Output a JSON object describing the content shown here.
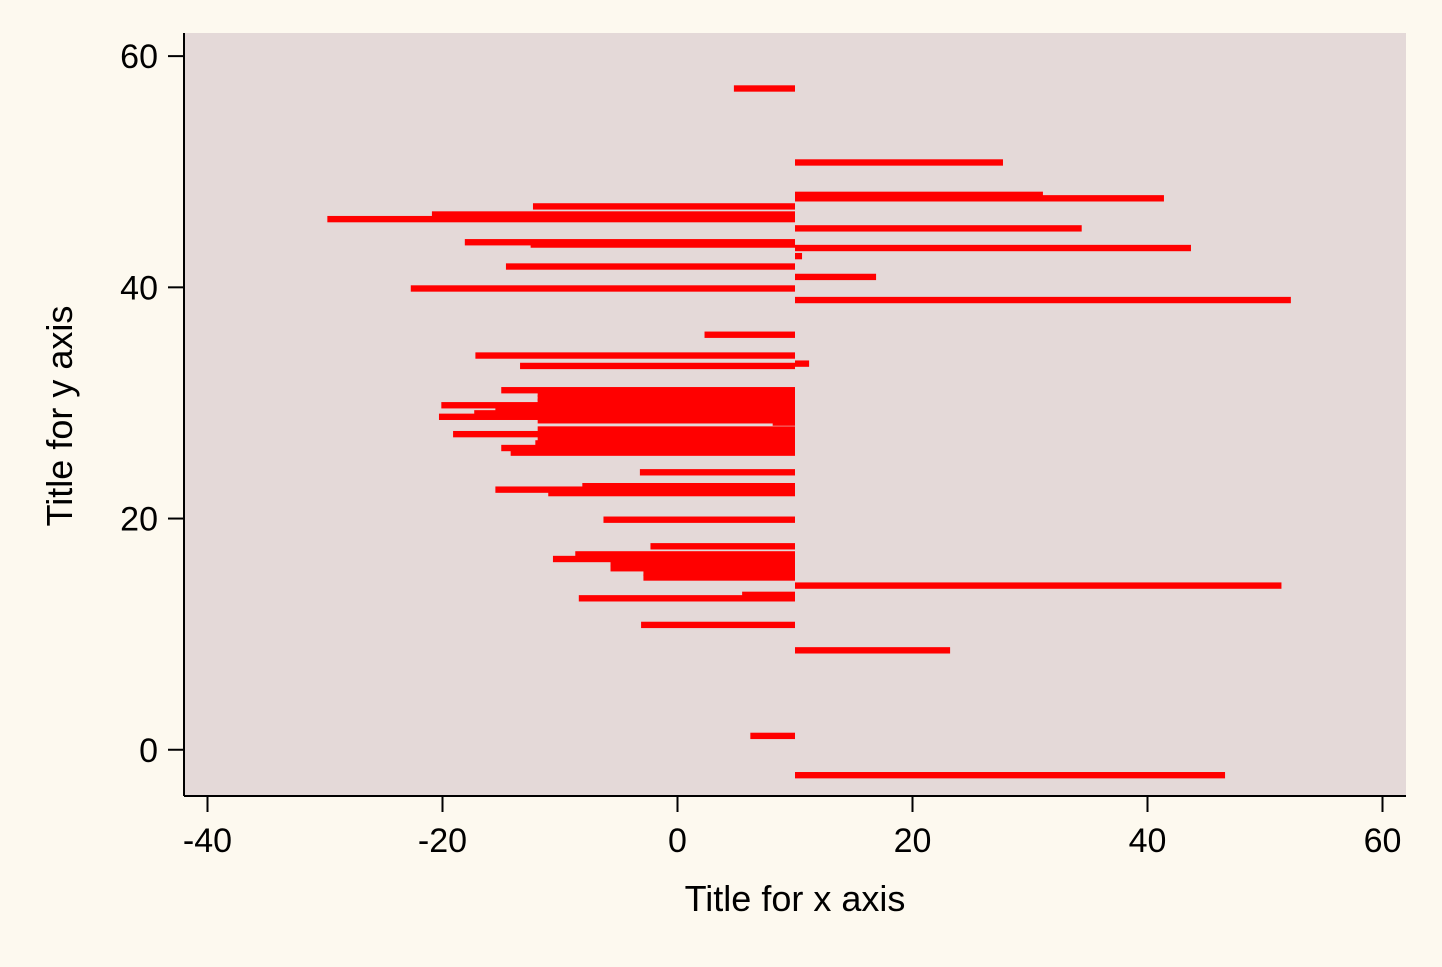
{
  "chart_data": {
    "type": "bar",
    "orientation": "horizontal",
    "xlabel": "Title for x axis",
    "ylabel": "Title for y axis",
    "xlim": [
      -42,
      62
    ],
    "ylim": [
      -4,
      62
    ],
    "x_ticks": [
      -40,
      -20,
      0,
      20,
      40,
      60
    ],
    "y_ticks": [
      0,
      20,
      40,
      60
    ],
    "base": 10,
    "bar_height": 0.55,
    "grid": false,
    "legend": "none",
    "colors": {
      "bar": "#ff0000",
      "plot_background": "#e4d9d8",
      "page_background": "#fdf9ef",
      "axis": "#000000"
    },
    "series": [
      {
        "points": [
          {
            "y": 57.2,
            "x": 4.8
          },
          {
            "y": 50.8,
            "x": 27.7
          },
          {
            "y": 48.0,
            "x": 31.1
          },
          {
            "y": 47.7,
            "x": 41.4
          },
          {
            "y": 47.0,
            "x": -12.3
          },
          {
            "y": 46.3,
            "x": -20.9
          },
          {
            "y": 45.9,
            "x": -29.8
          },
          {
            "y": 45.1,
            "x": 34.4
          },
          {
            "y": 43.9,
            "x": -18.1
          },
          {
            "y": 43.7,
            "x": -12.5
          },
          {
            "y": 43.4,
            "x": 43.7
          },
          {
            "y": 42.7,
            "x": 10.6
          },
          {
            "y": 41.8,
            "x": -14.6
          },
          {
            "y": 40.9,
            "x": 16.9
          },
          {
            "y": 39.9,
            "x": -22.7
          },
          {
            "y": 38.9,
            "x": 52.2
          },
          {
            "y": 35.9,
            "x": 2.3
          },
          {
            "y": 34.1,
            "x": -17.2
          },
          {
            "y": 33.4,
            "x": 11.2
          },
          {
            "y": 33.2,
            "x": -13.4
          },
          {
            "y": 31.1,
            "x": -15.0
          },
          {
            "y": 30.8,
            "x": -11.9
          },
          {
            "y": 30.4,
            "x": -11.9
          },
          {
            "y": 30.1,
            "x": -11.9
          },
          {
            "y": 29.8,
            "x": -20.1
          },
          {
            "y": 29.5,
            "x": -15.5
          },
          {
            "y": 29.1,
            "x": -17.3
          },
          {
            "y": 28.8,
            "x": -20.3
          },
          {
            "y": 28.5,
            "x": -11.9
          },
          {
            "y": 28.3,
            "x": 8.1
          },
          {
            "y": 27.7,
            "x": -11.9
          },
          {
            "y": 27.3,
            "x": -19.1
          },
          {
            "y": 26.9,
            "x": -11.9
          },
          {
            "y": 26.5,
            "x": -12.1
          },
          {
            "y": 26.1,
            "x": -15.0
          },
          {
            "y": 25.7,
            "x": -14.2
          },
          {
            "y": 24.0,
            "x": -3.2
          },
          {
            "y": 22.8,
            "x": -8.1
          },
          {
            "y": 22.5,
            "x": -15.5
          },
          {
            "y": 22.2,
            "x": -11.0
          },
          {
            "y": 19.9,
            "x": -6.3
          },
          {
            "y": 17.6,
            "x": -2.3
          },
          {
            "y": 16.9,
            "x": -8.7
          },
          {
            "y": 16.5,
            "x": -10.6
          },
          {
            "y": 16.1,
            "x": -5.7
          },
          {
            "y": 15.7,
            "x": -5.7
          },
          {
            "y": 15.3,
            "x": -2.9
          },
          {
            "y": 14.9,
            "x": -2.9
          },
          {
            "y": 14.2,
            "x": 51.4
          },
          {
            "y": 13.4,
            "x": 5.5
          },
          {
            "y": 13.1,
            "x": -8.4
          },
          {
            "y": 10.8,
            "x": -3.1
          },
          {
            "y": 8.6,
            "x": 23.2
          },
          {
            "y": 1.2,
            "x": 6.2
          },
          {
            "y": -2.2,
            "x": 46.6
          }
        ]
      }
    ]
  }
}
